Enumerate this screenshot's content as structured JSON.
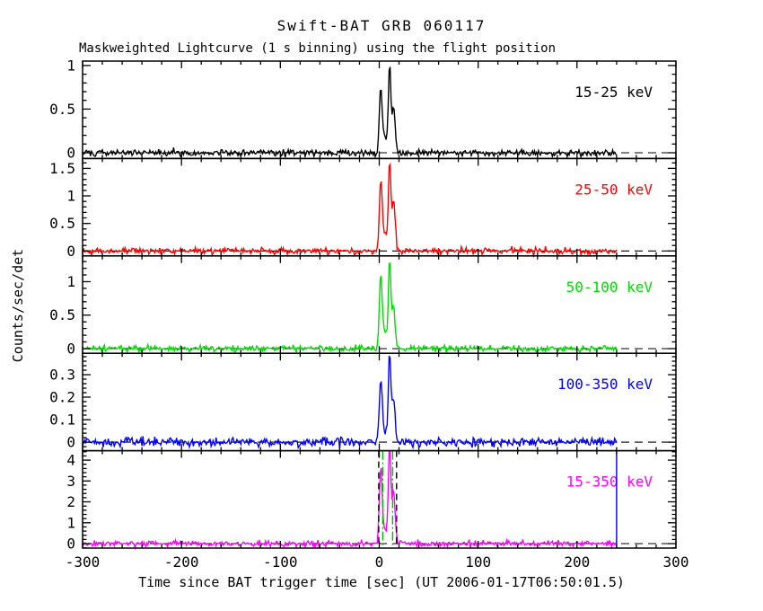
{
  "title": "Swift-BAT GRB 060117",
  "subtitle": "Maskweighted Lightcurve (1 s binning) using the flight position",
  "xlabel": "Time since BAT trigger time [sec] (UT 2006-01-17T06:50:01.5)",
  "ylabel": "Counts/sec/det",
  "chart_data": {
    "type": "line",
    "title": "Swift-BAT GRB 060117",
    "subtitle": "Maskweighted Lightcurve (1 s binning) using the flight position",
    "xlabel": "Time since BAT trigger time [sec] (UT 2006-01-17T06:50:01.5)",
    "ylabel": "Counts/sec/det",
    "grid": false,
    "legend_position": "inside-top-right",
    "x_unit": "sec",
    "xlim": [
      -300,
      300
    ],
    "x_major_step": 100,
    "x_minor_step": 20,
    "xticks": [
      {
        "value": -300,
        "label": "-300"
      },
      {
        "value": -200,
        "label": "-200"
      },
      {
        "value": -100,
        "label": "-100"
      },
      {
        "value": 0,
        "label": "0"
      },
      {
        "value": 100,
        "label": "100"
      },
      {
        "value": 200,
        "label": "200"
      },
      {
        "value": 300,
        "label": "300"
      }
    ],
    "data_time_range": [
      -300,
      240
    ],
    "binning_sec": 1,
    "baseline_counts": 0,
    "zero_line_style": "dashed",
    "panels": [
      {
        "id": "band-15-25",
        "label": "15-25 keV",
        "color": "#000000",
        "ylim": [
          -0.066,
          1.05
        ],
        "y_minor_step": 0.1,
        "yticks": [
          {
            "value": 0,
            "label": "0"
          },
          {
            "value": 0.5,
            "label": "0.5"
          },
          {
            "value": 1,
            "label": "1"
          }
        ],
        "noise_sigma": 0.018,
        "peaks": [
          {
            "t": 1.5,
            "amp": 0.72,
            "sigma": 1.4
          },
          {
            "t": 5.5,
            "amp": 0.18,
            "sigma": 2.5
          },
          {
            "t": 10.5,
            "amp": 1.0,
            "sigma": 1.2
          },
          {
            "t": 14.5,
            "amp": 0.52,
            "sigma": 1.6
          }
        ],
        "vlines": []
      },
      {
        "id": "band-25-50",
        "label": "25-50 keV",
        "color": "#ff0000",
        "ylim": [
          -0.09,
          1.68
        ],
        "y_minor_step": 0.1,
        "yticks": [
          {
            "value": 0,
            "label": "0"
          },
          {
            "value": 0.5,
            "label": "0.5"
          },
          {
            "value": 1,
            "label": "1"
          },
          {
            "value": 1.5,
            "label": "1.5"
          }
        ],
        "noise_sigma": 0.028,
        "peaks": [
          {
            "t": 1.5,
            "amp": 1.22,
            "sigma": 1.4
          },
          {
            "t": 5.5,
            "amp": 0.3,
            "sigma": 2.5
          },
          {
            "t": 10.5,
            "amp": 1.6,
            "sigma": 1.2
          },
          {
            "t": 14.5,
            "amp": 0.9,
            "sigma": 1.6
          }
        ],
        "vlines": []
      },
      {
        "id": "band-50-100",
        "label": "50-100 keV",
        "color": "#00dd00",
        "ylim": [
          -0.07,
          1.385
        ],
        "y_minor_step": 0.1,
        "yticks": [
          {
            "value": 0,
            "label": "0"
          },
          {
            "value": 0.5,
            "label": "0.5"
          },
          {
            "value": 1,
            "label": "1"
          }
        ],
        "noise_sigma": 0.022,
        "peaks": [
          {
            "t": 1.5,
            "amp": 1.05,
            "sigma": 1.4
          },
          {
            "t": 5.5,
            "amp": 0.25,
            "sigma": 2.5
          },
          {
            "t": 10.5,
            "amp": 1.33,
            "sigma": 1.2
          },
          {
            "t": 14.5,
            "amp": 0.62,
            "sigma": 1.6
          }
        ],
        "vlines": []
      },
      {
        "id": "band-100-350",
        "label": "100-350 keV",
        "color": "#0000ff",
        "ylim": [
          -0.038,
          0.395
        ],
        "y_minor_step": 0.02,
        "yticks": [
          {
            "value": 0,
            "label": "0"
          },
          {
            "value": 0.1,
            "label": "0.1"
          },
          {
            "value": 0.2,
            "label": "0.2"
          },
          {
            "value": 0.3,
            "label": "0.3"
          }
        ],
        "noise_sigma": 0.01,
        "peaks": [
          {
            "t": 1.5,
            "amp": 0.27,
            "sigma": 1.4
          },
          {
            "t": 5.5,
            "amp": 0.05,
            "sigma": 2.5
          },
          {
            "t": 10.5,
            "amp": 0.4,
            "sigma": 1.2
          },
          {
            "t": 14.5,
            "amp": 0.19,
            "sigma": 1.6
          }
        ],
        "vlines": []
      },
      {
        "id": "band-15-350",
        "label": "15-350 keV",
        "color": "#ff00ff",
        "ylim": [
          -0.215,
          4.45
        ],
        "y_minor_step": 0.2,
        "yticks": [
          {
            "value": 0,
            "label": "0"
          },
          {
            "value": 1,
            "label": "1"
          },
          {
            "value": 2,
            "label": "2"
          },
          {
            "value": 3,
            "label": "3"
          },
          {
            "value": 4,
            "label": "4"
          }
        ],
        "noise_sigma": 0.07,
        "peaks": [
          {
            "t": 1.5,
            "amp": 3.5,
            "sigma": 1.4
          },
          {
            "t": 5.5,
            "amp": 0.7,
            "sigma": 2.5
          },
          {
            "t": 10.5,
            "amp": 4.9,
            "sigma": 1.2
          },
          {
            "t": 14.5,
            "amp": 2.5,
            "sigma": 1.6
          }
        ],
        "vlines": [
          {
            "t": -0.5,
            "style": "dashed",
            "color": "#000000",
            "name": "burst-interval-start-marker"
          },
          {
            "t": 17.5,
            "style": "dashed",
            "color": "#000000",
            "name": "burst-interval-end-marker"
          },
          {
            "t": 3.5,
            "style": "dashdot",
            "color": "#00bb00",
            "name": "t90-start-marker"
          },
          {
            "t": 13.5,
            "style": "dashdot",
            "color": "#00bb00",
            "name": "t90-end-marker"
          },
          {
            "t": 240,
            "style": "solid",
            "color": "#0000cc",
            "name": "data-end-marker"
          }
        ]
      }
    ]
  }
}
